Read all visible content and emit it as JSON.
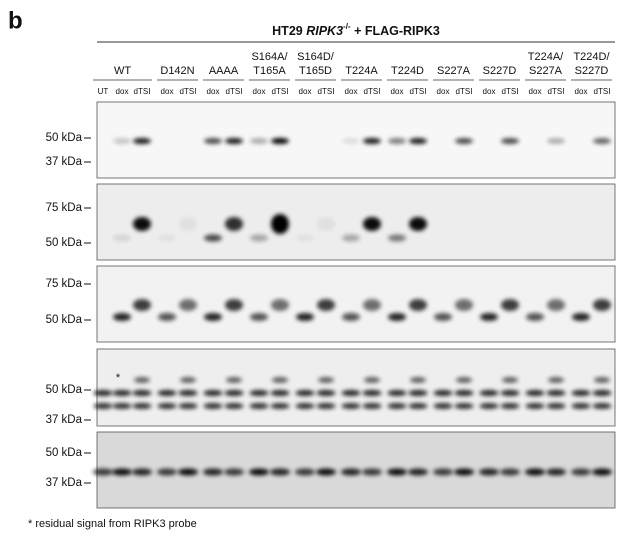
{
  "panel_label": "b",
  "header": {
    "title_parts": [
      "HT29 ",
      "RIPK3",
      "-/-",
      " + FLAG-RIPK3"
    ]
  },
  "groups": [
    {
      "lines": [
        "WT"
      ]
    },
    {
      "lines": [
        "D142N"
      ]
    },
    {
      "lines": [
        "AAAA"
      ]
    },
    {
      "lines": [
        "S164A/",
        "T165A"
      ]
    },
    {
      "lines": [
        "S164D/",
        "T165D"
      ]
    },
    {
      "lines": [
        "T224A"
      ]
    },
    {
      "lines": [
        "T224D"
      ]
    },
    {
      "lines": [
        "S227A"
      ]
    },
    {
      "lines": [
        "S227D"
      ]
    },
    {
      "lines": [
        "T224A/",
        "S227A"
      ]
    },
    {
      "lines": [
        "T224D/",
        "S227D"
      ]
    }
  ],
  "lanes": [
    "UT",
    "dox",
    "dTSI",
    "dox",
    "dTSI",
    "dox",
    "dTSI",
    "dox",
    "dTSI",
    "dox",
    "dTSI",
    "dox",
    "dTSI",
    "dox",
    "dTSI",
    "dox",
    "dTSI",
    "dox",
    "dTSI",
    "dox",
    "dTSI",
    "dox",
    "dTSI"
  ],
  "panels": [
    {
      "markers": [
        "50 kDa",
        "37 kDa"
      ]
    },
    {
      "markers": [
        "75 kDa",
        "50 kDa"
      ]
    },
    {
      "markers": [
        "75 kDa",
        "50 kDa"
      ]
    },
    {
      "markers": [
        "50 kDa",
        "37 kDa"
      ]
    },
    {
      "markers": [
        "50 kDa",
        "37 kDa"
      ]
    }
  ],
  "annotation": "*",
  "footnote": "* residual signal from RIPK3 probe"
}
